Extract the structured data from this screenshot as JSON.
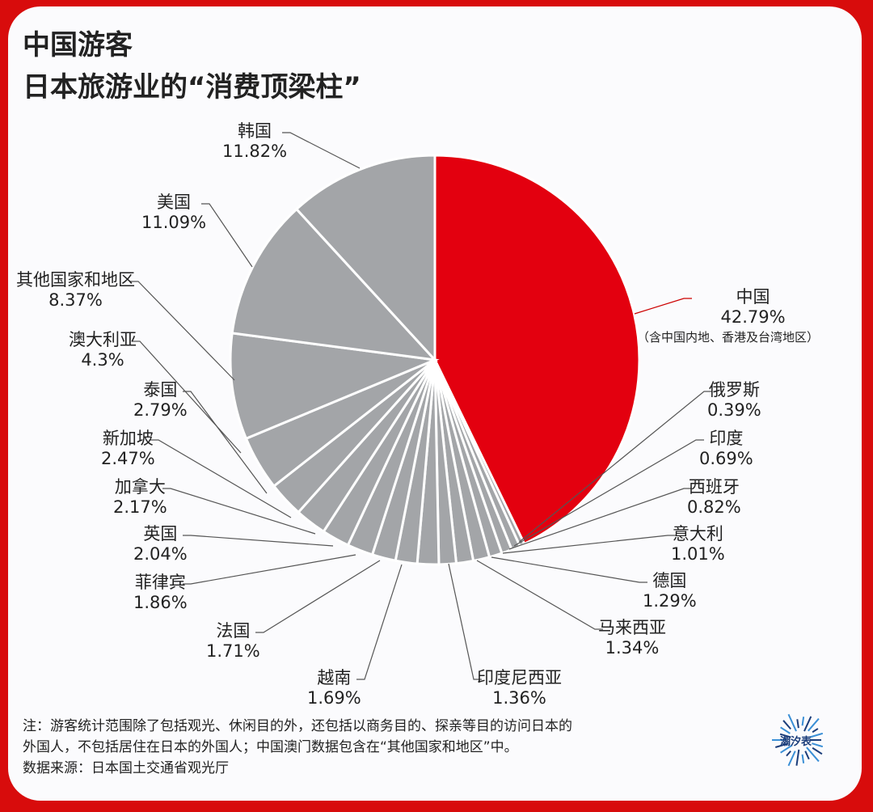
{
  "title": {
    "line1": "中国游客",
    "line2": "日本旅游业的“消费顶梁柱”"
  },
  "chart_data": {
    "type": "pie",
    "title": "中国游客 日本旅游业的“消费顶梁柱”",
    "start": "12 o'clock, clockwise",
    "colors": {
      "highlight": "#e3000f",
      "others": "#a3a5a8",
      "separator": "#ffffff"
    },
    "slices": [
      {
        "label": "中国",
        "value": 42.79,
        "text": "42.79%",
        "note": "（含中国内地、香港及台湾地区）"
      },
      {
        "label": "俄罗斯",
        "value": 0.39,
        "text": "0.39%"
      },
      {
        "label": "印度",
        "value": 0.69,
        "text": "0.69%"
      },
      {
        "label": "西班牙",
        "value": 0.82,
        "text": "0.82%"
      },
      {
        "label": "意大利",
        "value": 1.01,
        "text": "1.01%"
      },
      {
        "label": "德国",
        "value": 1.29,
        "text": "1.29%"
      },
      {
        "label": "马来西亚",
        "value": 1.34,
        "text": "1.34%"
      },
      {
        "label": "印度尼西亚",
        "value": 1.36,
        "text": "1.36%"
      },
      {
        "label": "越南",
        "value": 1.69,
        "text": "1.69%"
      },
      {
        "label": "法国",
        "value": 1.71,
        "text": "1.71%"
      },
      {
        "label": "菲律宾",
        "value": 1.86,
        "text": "1.86%"
      },
      {
        "label": "英国",
        "value": 2.04,
        "text": "2.04%"
      },
      {
        "label": "加拿大",
        "value": 2.17,
        "text": "2.17%"
      },
      {
        "label": "新加坡",
        "value": 2.47,
        "text": "2.47%"
      },
      {
        "label": "泰国",
        "value": 2.79,
        "text": "2.79%"
      },
      {
        "label": "澳大利亚",
        "value": 4.3,
        "text": "4.3%"
      },
      {
        "label": "其他国家和地区",
        "value": 8.37,
        "text": "8.37%"
      },
      {
        "label": "美国",
        "value": 11.09,
        "text": "11.09%"
      },
      {
        "label": "韩国",
        "value": 11.82,
        "text": "11.82%"
      }
    ]
  },
  "footer": {
    "note_line1": "注：游客统计范围除了包括观光、休闲目的外，还包括以商务目的、探亲等目的访问日本的",
    "note_line2": "外国人，不包括居住在日本的外国人；中国澳门数据包含在“其他国家和地区”中。",
    "source": "数据来源：日本国土交通省观光厅",
    "logo_text": "潮汐表"
  }
}
